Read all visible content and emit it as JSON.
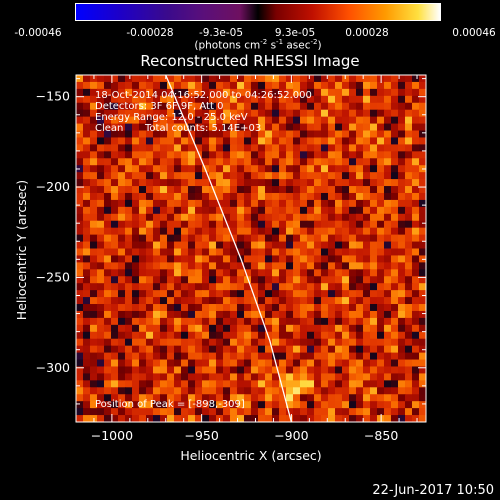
{
  "window": {
    "date_stamp": "22-Jun-2017 10:50"
  },
  "colorbar": {
    "tick_labels": [
      "-0.00046",
      "-0.00028",
      "-9.3e-05",
      "9.3e-05",
      "0.00028",
      "0.00046"
    ],
    "tick_values": [
      -0.00046,
      -0.00028,
      -9.3e-05,
      9.3e-05,
      0.00028,
      0.00046
    ],
    "unit_prefix": "(photons cm",
    "unit_exp1": "-2",
    "unit_mid": " s",
    "unit_exp2": "-1",
    "unit_mid2": " asec",
    "unit_exp3": "-2",
    "unit_suffix": ")",
    "colors": [
      "#0000ff",
      "#3a0a8c",
      "#000000",
      "#c01000",
      "#ff9a00",
      "#ffffff"
    ]
  },
  "chart_data": {
    "type": "heatmap",
    "title": "Reconstructed RHESSI Image",
    "xlabel": "Heliocentric X (arcsec)",
    "ylabel": "Heliocentric Y (arcsec)",
    "xlim": [
      -1020,
      -825
    ],
    "ylim": [
      -330,
      -138
    ],
    "x_ticks": [
      -1000,
      -950,
      -900,
      -850
    ],
    "x_tick_labels": [
      "−1000",
      "−950",
      "−900",
      "−850"
    ],
    "y_ticks": [
      -150,
      -200,
      -250,
      -300
    ],
    "y_tick_labels": [
      "−150",
      "−200",
      "−250",
      "−300"
    ],
    "annotations": {
      "time_range": "18-Oct-2014 04:16:52.000 to 04:26:52.000",
      "detectors": "Detectors: 3F 6F 9F, Att 0",
      "energy": "Energy Range: 12.0 - 25.0 keV",
      "method": "Clean",
      "total_counts": "Total counts: 5.14E+03",
      "peak": "Position of Peak = [-898,-309]"
    },
    "peak_position": [
      -898,
      -309
    ],
    "limb_curve": [
      [
        -970,
        -138
      ],
      [
        -948,
        -190
      ],
      [
        -928,
        -240
      ],
      [
        -912,
        -285
      ],
      [
        -900,
        -330
      ]
    ]
  }
}
